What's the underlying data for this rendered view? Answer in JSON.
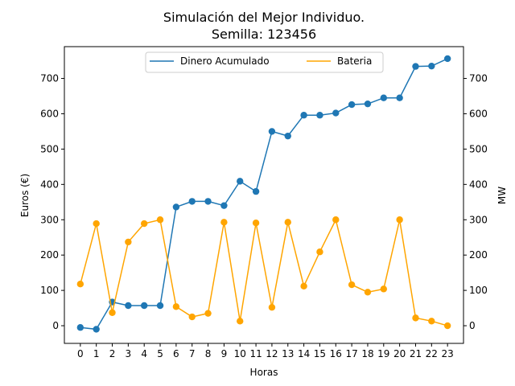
{
  "chart_data": {
    "type": "line",
    "title": "Simulación del Mejor Individuo.",
    "subtitle": "Semilla: 123456",
    "xlabel": "Horas",
    "ylabel_left": "Euros (€)",
    "ylabel_right": "MW",
    "x": [
      0,
      1,
      2,
      3,
      4,
      5,
      6,
      7,
      8,
      9,
      10,
      11,
      12,
      13,
      14,
      15,
      16,
      17,
      18,
      19,
      20,
      21,
      22,
      23
    ],
    "xlim": [
      -1,
      24
    ],
    "ylim_left": [
      -50,
      790
    ],
    "ylim_right": [
      -50,
      790
    ],
    "yticks_left": [
      0,
      100,
      200,
      300,
      400,
      500,
      600,
      700
    ],
    "yticks_right": [
      0,
      100,
      200,
      300,
      400,
      500,
      600,
      700
    ],
    "legend_position": "upper-center",
    "series": [
      {
        "name": "Dinero Acumulado",
        "color": "#1f77b4",
        "axis": "left",
        "values": [
          -5,
          -10,
          67,
          57,
          57,
          57,
          336,
          352,
          352,
          340,
          409,
          380,
          550,
          537,
          596,
          596,
          602,
          626,
          628,
          645,
          645,
          734,
          735,
          756
        ]
      },
      {
        "name": "Bateria",
        "color": "#ffa500",
        "axis": "right",
        "values": [
          118,
          289,
          37,
          237,
          289,
          300,
          54,
          25,
          35,
          293,
          13,
          291,
          52,
          293,
          112,
          209,
          300,
          116,
          95,
          104,
          300,
          22,
          13,
          0
        ]
      }
    ]
  }
}
